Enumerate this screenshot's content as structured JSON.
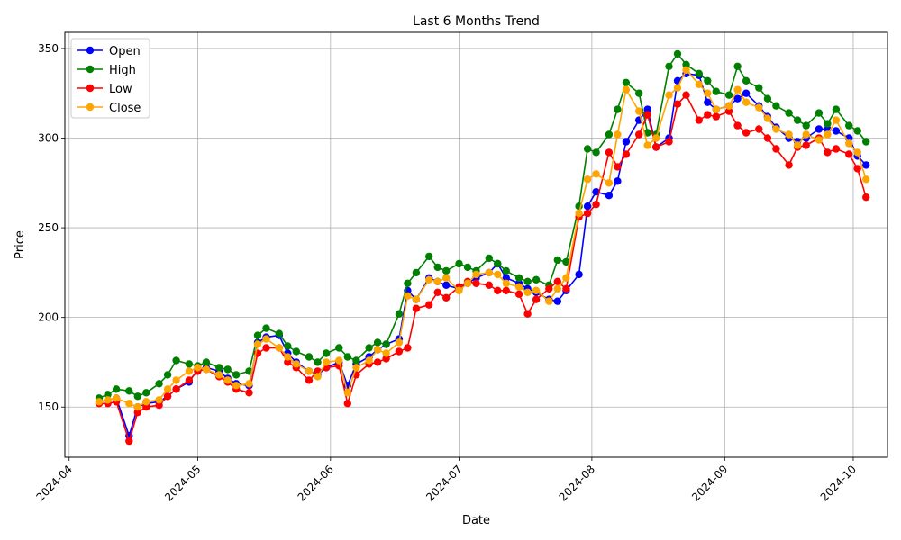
{
  "chart_data": {
    "type": "line",
    "title": "Last 6 Months Trend",
    "xlabel": "Date",
    "ylabel": "Price",
    "ylim": [
      122,
      359
    ],
    "xlim": [
      "2024-03-31",
      "2024-10-09"
    ],
    "x_ticks": [
      "2024-04",
      "2024-05",
      "2024-06",
      "2024-07",
      "2024-08",
      "2024-09",
      "2024-10"
    ],
    "x_tick_dates": [
      "2024-04-01",
      "2024-05-01",
      "2024-06-01",
      "2024-07-01",
      "2024-08-01",
      "2024-09-01",
      "2024-10-01"
    ],
    "y_ticks": [
      150,
      200,
      250,
      300,
      350
    ],
    "grid": true,
    "legend": "upper left",
    "dates": [
      "2024-04-08",
      "2024-04-10",
      "2024-04-12",
      "2024-04-15",
      "2024-04-17",
      "2024-04-19",
      "2024-04-22",
      "2024-04-24",
      "2024-04-26",
      "2024-04-29",
      "2024-05-01",
      "2024-05-03",
      "2024-05-06",
      "2024-05-08",
      "2024-05-10",
      "2024-05-13",
      "2024-05-15",
      "2024-05-17",
      "2024-05-20",
      "2024-05-22",
      "2024-05-24",
      "2024-05-27",
      "2024-05-29",
      "2024-05-31",
      "2024-06-03",
      "2024-06-05",
      "2024-06-07",
      "2024-06-10",
      "2024-06-12",
      "2024-06-14",
      "2024-06-17",
      "2024-06-19",
      "2024-06-21",
      "2024-06-24",
      "2024-06-26",
      "2024-06-28",
      "2024-07-01",
      "2024-07-03",
      "2024-07-05",
      "2024-07-08",
      "2024-07-10",
      "2024-07-12",
      "2024-07-15",
      "2024-07-17",
      "2024-07-19",
      "2024-07-22",
      "2024-07-24",
      "2024-07-26",
      "2024-07-29",
      "2024-07-31",
      "2024-08-02",
      "2024-08-05",
      "2024-08-07",
      "2024-08-09",
      "2024-08-12",
      "2024-08-14",
      "2024-08-16",
      "2024-08-19",
      "2024-08-21",
      "2024-08-23",
      "2024-08-26",
      "2024-08-28",
      "2024-08-30",
      "2024-09-02",
      "2024-09-04",
      "2024-09-06",
      "2024-09-09",
      "2024-09-11",
      "2024-09-13",
      "2024-09-16",
      "2024-09-18",
      "2024-09-20",
      "2024-09-23",
      "2024-09-25",
      "2024-09-27",
      "2024-09-30",
      "2024-10-02",
      "2024-10-04"
    ],
    "series": [
      {
        "name": "Open",
        "color": "#0000ff",
        "values": [
          153,
          154,
          155,
          134,
          150,
          152,
          153,
          156,
          160,
          164,
          171,
          172,
          170,
          166,
          163,
          162,
          186,
          189,
          190,
          180,
          175,
          170,
          168,
          172,
          175,
          162,
          174,
          178,
          182,
          185,
          188,
          215,
          210,
          222,
          220,
          218,
          216,
          219,
          222,
          225,
          230,
          222,
          219,
          216,
          214,
          210,
          209,
          215,
          224,
          262,
          270,
          268,
          276,
          298,
          310,
          316,
          295,
          300,
          332,
          336,
          335,
          320,
          316,
          318,
          322,
          325,
          318,
          312,
          306,
          300,
          298,
          300,
          305,
          305,
          304,
          300,
          290,
          285
        ]
      },
      {
        "name": "High",
        "color": "#008000",
        "values": [
          155,
          157,
          160,
          159,
          156,
          158,
          163,
          168,
          176,
          174,
          173,
          175,
          172,
          171,
          168,
          170,
          190,
          194,
          191,
          184,
          181,
          178,
          175,
          180,
          183,
          178,
          176,
          183,
          186,
          185,
          202,
          219,
          225,
          234,
          228,
          226,
          230,
          228,
          226,
          233,
          230,
          226,
          222,
          220,
          221,
          218,
          232,
          231,
          262,
          294,
          292,
          302,
          316,
          331,
          325,
          303,
          302,
          340,
          347,
          341,
          336,
          332,
          326,
          324,
          340,
          332,
          328,
          322,
          318,
          314,
          310,
          307,
          314,
          308,
          316,
          307,
          304,
          298
        ]
      },
      {
        "name": "Low",
        "color": "#ff0000",
        "values": [
          152,
          152,
          153,
          131,
          147,
          150,
          151,
          156,
          160,
          165,
          170,
          171,
          167,
          164,
          160,
          158,
          180,
          183,
          183,
          175,
          172,
          165,
          170,
          172,
          173,
          152,
          168,
          174,
          175,
          177,
          181,
          183,
          205,
          207,
          214,
          211,
          217,
          220,
          219,
          218,
          215,
          215,
          213,
          202,
          210,
          216,
          220,
          216,
          256,
          258,
          263,
          292,
          284,
          291,
          302,
          313,
          295,
          298,
          319,
          324,
          310,
          313,
          312,
          315,
          307,
          303,
          305,
          300,
          294,
          285,
          295,
          296,
          300,
          292,
          294,
          291,
          283,
          267
        ]
      },
      {
        "name": "Close",
        "color": "#ffa500",
        "values": [
          153,
          154,
          155,
          152,
          150,
          153,
          154,
          160,
          165,
          170,
          172,
          171,
          168,
          165,
          162,
          163,
          185,
          188,
          183,
          178,
          174,
          170,
          167,
          175,
          176,
          158,
          172,
          176,
          182,
          180,
          186,
          212,
          210,
          221,
          220,
          222,
          215,
          219,
          224,
          225,
          224,
          219,
          217,
          214,
          215,
          209,
          216,
          222,
          258,
          277,
          280,
          275,
          302,
          327,
          315,
          296,
          300,
          324,
          328,
          338,
          330,
          325,
          316,
          318,
          327,
          320,
          317,
          311,
          305,
          302,
          296,
          302,
          299,
          302,
          310,
          297,
          292,
          277
        ]
      }
    ]
  }
}
